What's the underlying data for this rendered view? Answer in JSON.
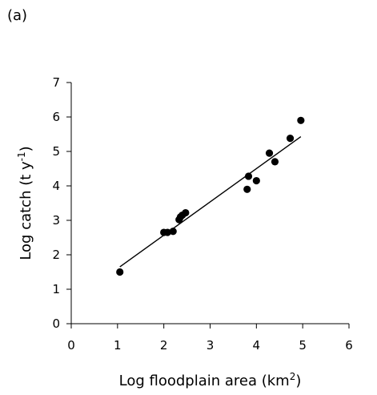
{
  "panel_label": "(a)",
  "chart_data": {
    "type": "scatter",
    "title": "",
    "xlabel": {
      "base": "Log floodplain area (km",
      "sup": "2",
      "end": ")"
    },
    "ylabel": {
      "base": "Log catch (t y",
      "sup": "-1",
      "end": ")"
    },
    "xlim": [
      0,
      6
    ],
    "ylim": [
      0,
      7
    ],
    "xticks": [
      "0",
      "1",
      "2",
      "3",
      "4",
      "5",
      "6"
    ],
    "yticks": [
      "0",
      "1",
      "2",
      "3",
      "4",
      "5",
      "6",
      "7"
    ],
    "grid": false,
    "legend": "none",
    "points": [
      {
        "x": 1.05,
        "y": 1.5
      },
      {
        "x": 2.0,
        "y": 2.65
      },
      {
        "x": 2.08,
        "y": 2.65
      },
      {
        "x": 2.2,
        "y": 2.68
      },
      {
        "x": 2.33,
        "y": 3.02
      },
      {
        "x": 2.36,
        "y": 3.1
      },
      {
        "x": 2.4,
        "y": 3.15
      },
      {
        "x": 2.47,
        "y": 3.22
      },
      {
        "x": 3.8,
        "y": 3.9
      },
      {
        "x": 3.83,
        "y": 4.28
      },
      {
        "x": 4.0,
        "y": 4.15
      },
      {
        "x": 4.28,
        "y": 4.95
      },
      {
        "x": 4.4,
        "y": 4.7
      },
      {
        "x": 4.73,
        "y": 5.38
      },
      {
        "x": 4.96,
        "y": 5.9
      }
    ],
    "trendline": {
      "x": [
        1.05,
        4.96
      ],
      "y": [
        1.65,
        5.43
      ]
    },
    "colors": {
      "points": "#000000",
      "line": "#000000",
      "axis": "#000000"
    }
  }
}
